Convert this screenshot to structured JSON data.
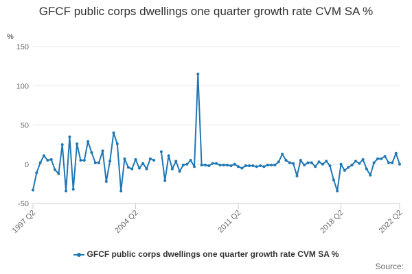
{
  "chart_data": {
    "type": "line",
    "title": "GFCF public corps dwellings one quarter growth rate CVM SA %",
    "ylabel": "%",
    "xlabel": "",
    "ylim": [
      -50,
      150
    ],
    "yticks": [
      -50,
      0,
      50,
      100,
      150
    ],
    "xtick_labels": [
      "1997 Q2",
      "2004 Q2",
      "2011 Q2",
      "2018 Q2",
      "2022 Q2"
    ],
    "xtick_indices": [
      0,
      28,
      56,
      84,
      100
    ],
    "legend": "GFCF public corps dwellings one quarter growth rate CVM SA %",
    "source_label": "Source:",
    "colors": {
      "series": "#1f77b4",
      "grid": "#e6e6e6",
      "axis": "#cccccc"
    },
    "series": [
      {
        "name": "GFCF public corps dwellings one quarter growth rate CVM SA %",
        "values": [
          -33,
          -11,
          2,
          11,
          5,
          6,
          -7,
          -12,
          25,
          -34,
          35,
          -32,
          26,
          5,
          5,
          29,
          15,
          2,
          2,
          17,
          -22,
          4,
          40,
          26,
          -34,
          7,
          -4,
          -6,
          6,
          -5,
          1,
          -6,
          7,
          5,
          null,
          16,
          -21,
          11,
          -6,
          4,
          -9,
          -1,
          0,
          5,
          -3,
          115,
          -1,
          -1,
          -2,
          1,
          1,
          -1,
          -1,
          -1,
          -2,
          0,
          -3,
          -5,
          -2,
          -2,
          -2,
          -3,
          -2,
          -3,
          -1,
          -1,
          -1,
          3,
          13,
          5,
          2,
          1,
          -15,
          5,
          -1,
          2,
          2,
          -3,
          3,
          0,
          4,
          -2,
          -20,
          -34,
          0,
          -8,
          -4,
          -1,
          4,
          1,
          6,
          -6,
          -14,
          2,
          7,
          7,
          10,
          2,
          2,
          14,
          0
        ]
      }
    ]
  }
}
